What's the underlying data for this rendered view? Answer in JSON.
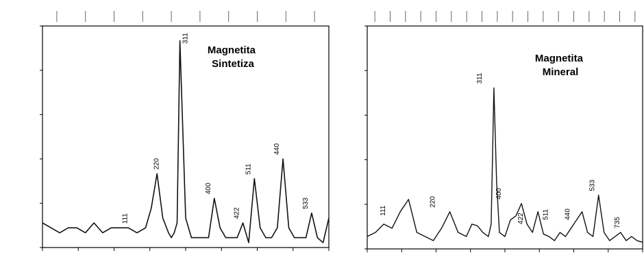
{
  "chart_data": [
    {
      "type": "line",
      "title": "Magnetita\nSintetiza",
      "xlabel": "",
      "ylabel": "",
      "grid": false,
      "ylim": [
        0,
        45
      ],
      "x": [
        0,
        3,
        6,
        9,
        12,
        15,
        18,
        21,
        24,
        27,
        30,
        33,
        36,
        38,
        40,
        42,
        44,
        45,
        46,
        47,
        48,
        50,
        52,
        54,
        56,
        58,
        60,
        62,
        64,
        66,
        68,
        70,
        72,
        74,
        76,
        78,
        80,
        82,
        84,
        86,
        88,
        90,
        92,
        94,
        96,
        98,
        100
      ],
      "series": [
        {
          "values": [
            5,
            4,
            3,
            4,
            4,
            3,
            5,
            3,
            4,
            4,
            4,
            3,
            4,
            8,
            15,
            6,
            3,
            2,
            3,
            5,
            42,
            6,
            2,
            2,
            2,
            2,
            10,
            4,
            2,
            2,
            2,
            5,
            1,
            14,
            4,
            2,
            2,
            4,
            18,
            4,
            2,
            2,
            2,
            7,
            2,
            1,
            6
          ]
        }
      ],
      "peak_labels": [
        {
          "text": "111",
          "x": 31,
          "y": 4
        },
        {
          "text": "220",
          "x": 42,
          "y": 15
        },
        {
          "text": "311",
          "x": 52,
          "y": 42
        },
        {
          "text": "400",
          "x": 60,
          "y": 10
        },
        {
          "text": "422",
          "x": 70,
          "y": 5
        },
        {
          "text": "511",
          "x": 74,
          "y": 14
        },
        {
          "text": "440",
          "x": 84,
          "y": 18
        },
        {
          "text": "533",
          "x": 94,
          "y": 7
        }
      ]
    },
    {
      "type": "line",
      "title": "Magnetita\nMineral",
      "xlabel": "",
      "ylabel": "",
      "grid": false,
      "ylim": [
        0,
        270
      ],
      "x": [
        0,
        3,
        6,
        9,
        12,
        15,
        18,
        21,
        24,
        27,
        30,
        33,
        36,
        38,
        40,
        42,
        44,
        45,
        46,
        47,
        48,
        50,
        52,
        54,
        56,
        58,
        60,
        62,
        64,
        66,
        68,
        70,
        72,
        74,
        76,
        78,
        80,
        82,
        84,
        86,
        88,
        90,
        92,
        94,
        96,
        98,
        100
      ],
      "series": [
        {
          "values": [
            15,
            20,
            30,
            25,
            45,
            60,
            20,
            15,
            10,
            25,
            45,
            20,
            15,
            30,
            28,
            20,
            15,
            30,
            195,
            80,
            20,
            15,
            35,
            40,
            55,
            30,
            20,
            45,
            18,
            15,
            10,
            20,
            15,
            25,
            35,
            45,
            20,
            15,
            65,
            20,
            10,
            15,
            20,
            10,
            15,
            10,
            8
          ]
        }
      ],
      "peak_labels": [
        {
          "text": "111",
          "x": 8,
          "y": 35
        },
        {
          "text": "220",
          "x": 26,
          "y": 45
        },
        {
          "text": "311",
          "x": 43,
          "y": 195
        },
        {
          "text": "400",
          "x": 50,
          "y": 55
        },
        {
          "text": "422",
          "x": 58,
          "y": 25
        },
        {
          "text": "511",
          "x": 67,
          "y": 30
        },
        {
          "text": "440",
          "x": 75,
          "y": 30
        },
        {
          "text": "533",
          "x": 84,
          "y": 65
        },
        {
          "text": "735",
          "x": 93,
          "y": 20
        }
      ]
    }
  ]
}
